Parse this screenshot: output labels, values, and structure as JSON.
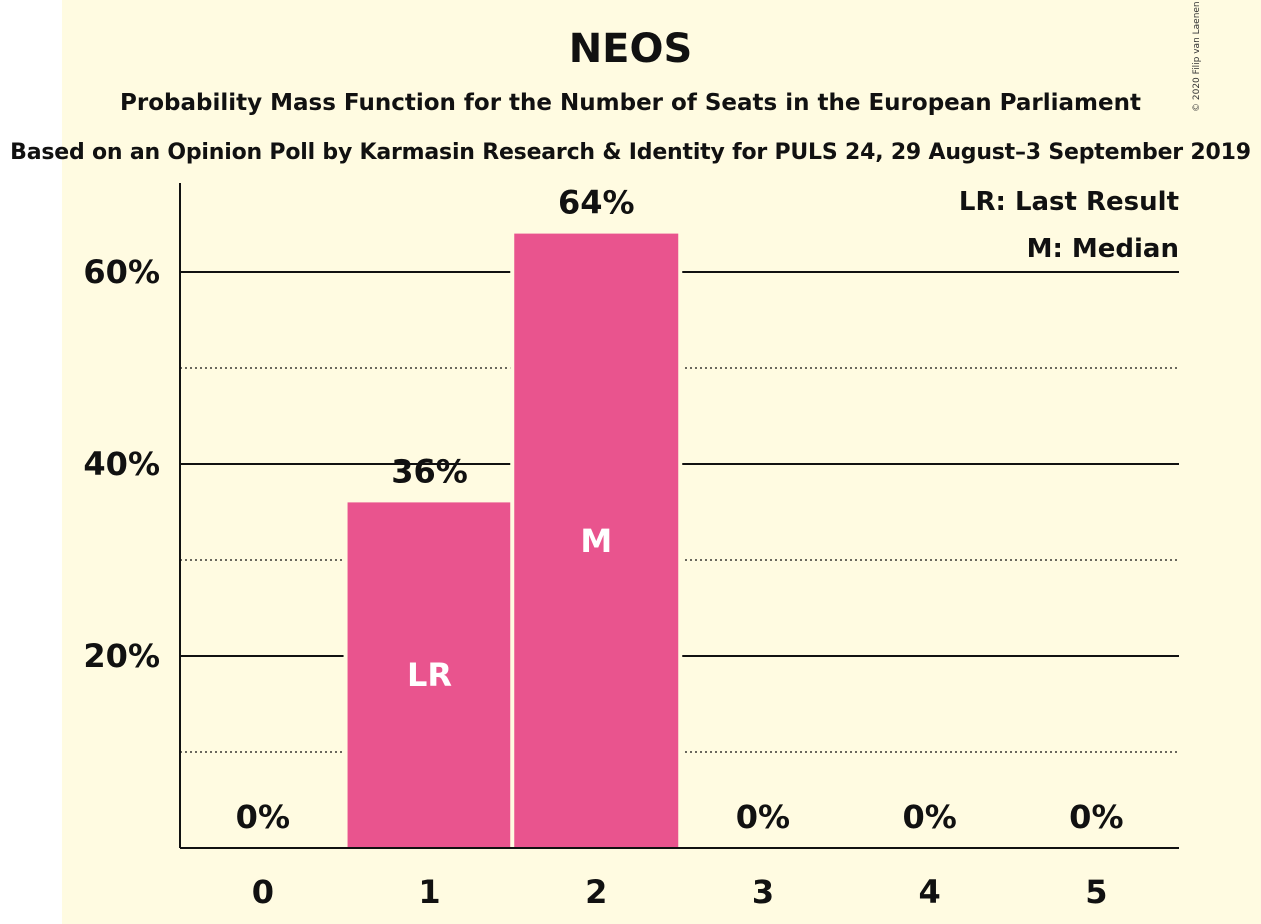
{
  "header": {
    "title": "NEOS",
    "subtitle": "Probability Mass Function for the Number of Seats in the European Parliament",
    "source": "Based on an Opinion Poll by Karmasin Research & Identity for PULS 24, 29 August–3 September 2019",
    "copyright": "© 2020 Filip van Laenen"
  },
  "legend": {
    "last_result": "LR: Last Result",
    "median": "M: Median"
  },
  "colors": {
    "background": "#FFFBE1",
    "bar": "#E9548E",
    "axis": "#111111"
  },
  "chart_data": {
    "type": "bar",
    "categories": [
      "0",
      "1",
      "2",
      "3",
      "4",
      "5"
    ],
    "values": [
      0,
      36,
      64,
      0,
      0,
      0
    ],
    "value_labels": [
      "0%",
      "36%",
      "64%",
      "0%",
      "0%",
      "0%"
    ],
    "bar_markers": [
      "",
      "LR",
      "M",
      "",
      "",
      ""
    ],
    "y_ticks": [
      20,
      40,
      60
    ],
    "y_tick_labels": [
      "20%",
      "40%",
      "60%"
    ],
    "minor_gridlines": [
      10,
      30,
      50
    ],
    "ylim": [
      0,
      69
    ],
    "grid": true,
    "legend_position": "top-right"
  }
}
